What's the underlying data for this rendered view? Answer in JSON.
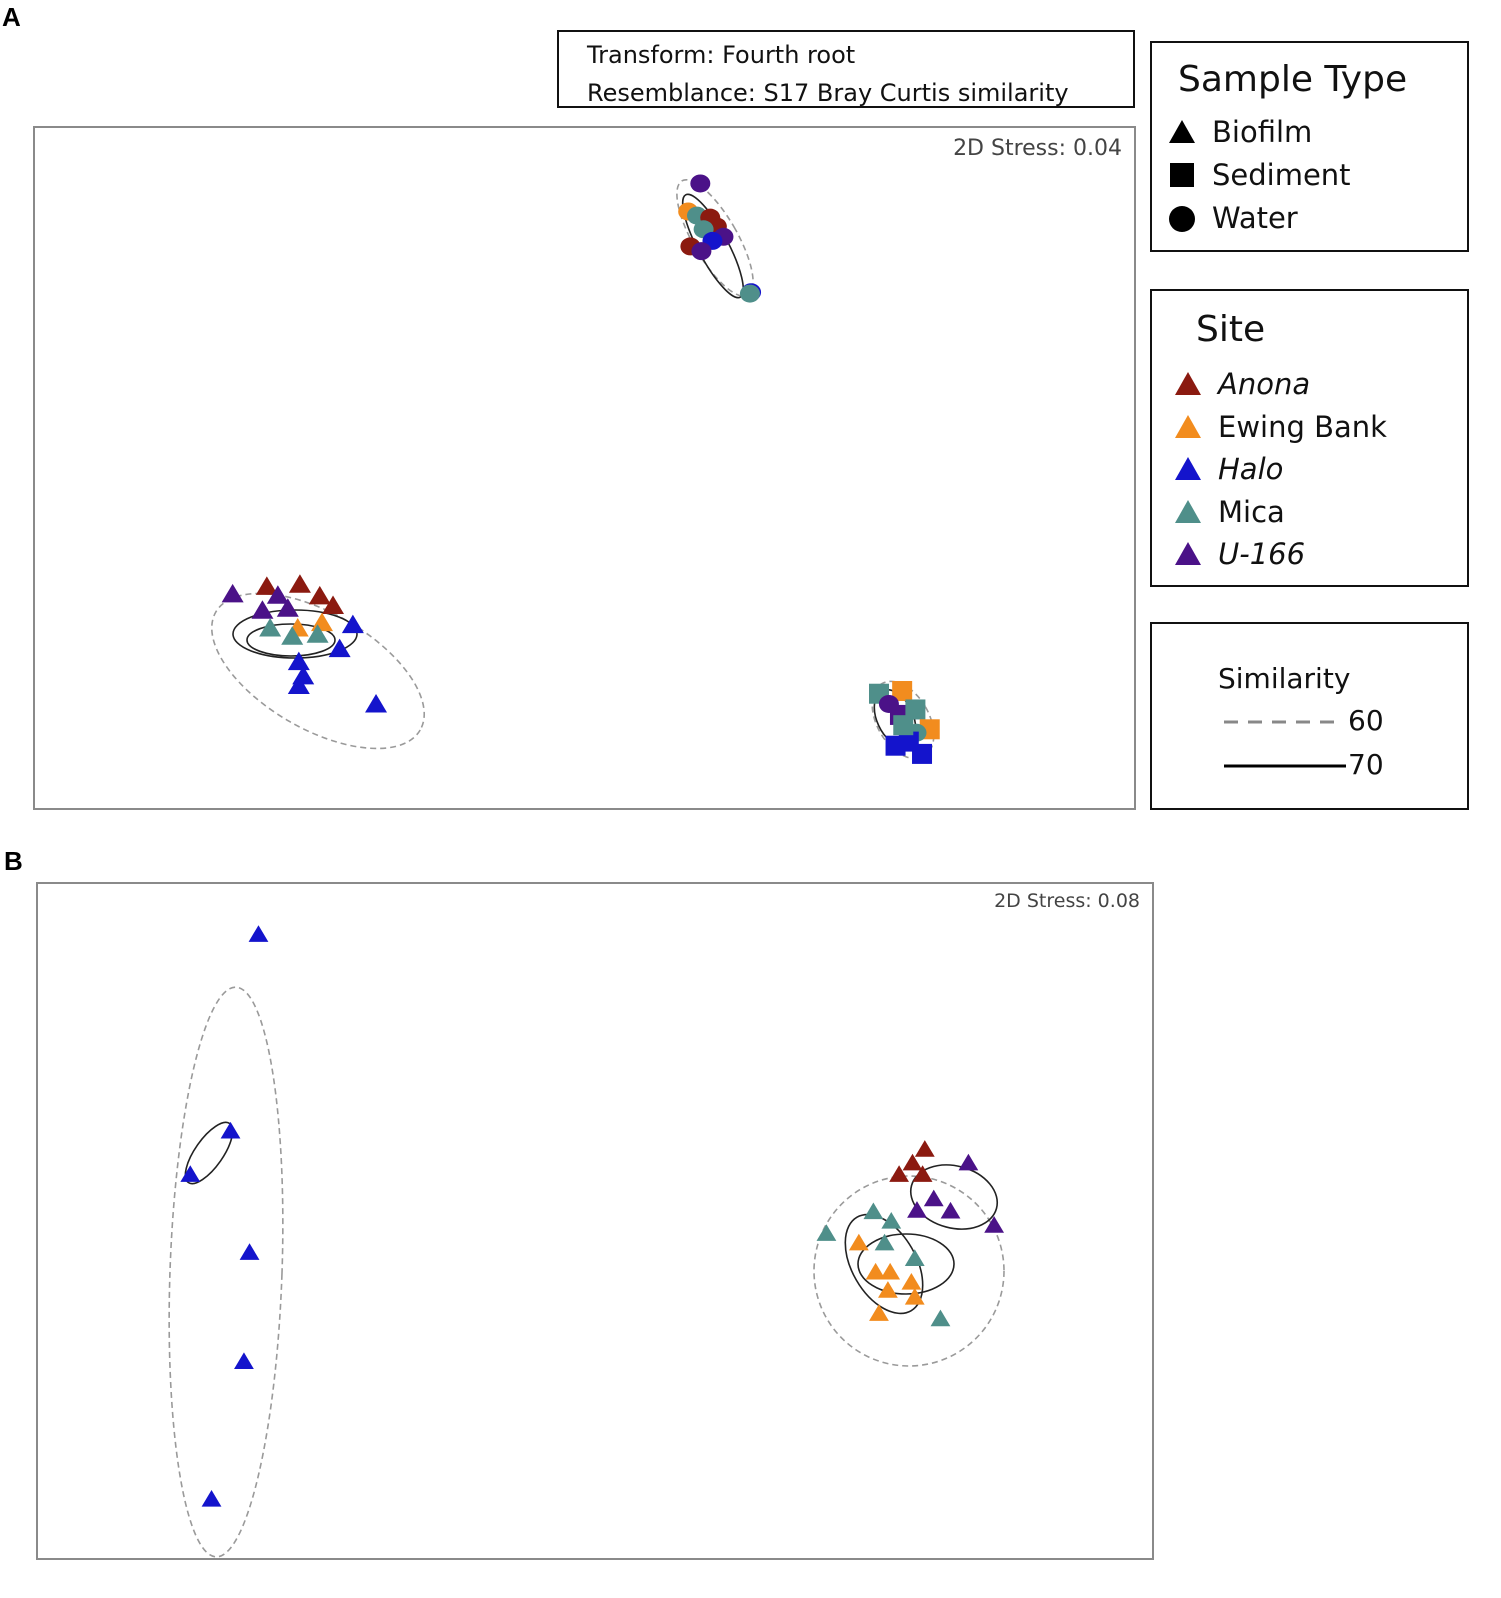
{
  "panels": {
    "a": {
      "letter": "A",
      "stress": "2D Stress: 0.04"
    },
    "b": {
      "letter": "B",
      "stress": "2D Stress: 0.08"
    }
  },
  "transform_box": {
    "line1": "Transform: Fourth root",
    "line2": "Resemblance: S17 Bray Curtis similarity"
  },
  "legend_sample_type": {
    "title": "Sample Type",
    "items": [
      {
        "label": "Biofilm",
        "shape": "triangle"
      },
      {
        "label": "Sediment",
        "shape": "square"
      },
      {
        "label": "Water",
        "shape": "circle"
      }
    ]
  },
  "legend_site": {
    "title": "Site",
    "items": [
      {
        "label": "Anona",
        "color": "#8b1a10",
        "italic": true
      },
      {
        "label": "Ewing Bank",
        "color": "#f28c1e",
        "italic": false
      },
      {
        "label": "Halo",
        "color": "#1414cc",
        "italic": true
      },
      {
        "label": "Mica",
        "color": "#4f8f8a",
        "italic": false
      },
      {
        "label": "U-166",
        "color": "#4b1288",
        "italic": true
      }
    ]
  },
  "legend_similarity": {
    "title": "Similarity",
    "items": [
      {
        "label": "60",
        "style": "dashed"
      },
      {
        "label": "70",
        "style": "solid"
      }
    ]
  },
  "chart_data": [
    {
      "type": "scatter",
      "panel": "A",
      "method": "nMDS",
      "xlim": [
        0,
        100
      ],
      "ylim": [
        0,
        100
      ],
      "colors": {
        "Anona": "#8b1a10",
        "Ewing Bank": "#f28c1e",
        "Halo": "#1414cc",
        "Mica": "#4f8f8a",
        "U-166": "#4b1288"
      },
      "points": [
        {
          "x": 60.5,
          "y": 91.6,
          "site": "U-166",
          "type": "Water"
        },
        {
          "x": 59.4,
          "y": 87.5,
          "site": "Ewing Bank",
          "type": "Water"
        },
        {
          "x": 60.2,
          "y": 86.9,
          "site": "Mica",
          "type": "Water"
        },
        {
          "x": 61.4,
          "y": 86.6,
          "site": "Anona",
          "type": "Water"
        },
        {
          "x": 62.0,
          "y": 85.3,
          "site": "Anona",
          "type": "Water"
        },
        {
          "x": 60.8,
          "y": 84.9,
          "site": "Mica",
          "type": "Water"
        },
        {
          "x": 62.6,
          "y": 83.8,
          "site": "U-166",
          "type": "Water"
        },
        {
          "x": 61.6,
          "y": 83.2,
          "site": "Halo",
          "type": "Water"
        },
        {
          "x": 59.6,
          "y": 82.4,
          "site": "Anona",
          "type": "Water"
        },
        {
          "x": 60.6,
          "y": 81.7,
          "site": "U-166",
          "type": "Water"
        },
        {
          "x": 65.1,
          "y": 75.7,
          "site": "Halo",
          "type": "Water"
        },
        {
          "x": 65.0,
          "y": 75.5,
          "site": "Mica",
          "type": "Water"
        },
        {
          "x": 18.1,
          "y": 31.6,
          "site": "U-166",
          "type": "Biofilm"
        },
        {
          "x": 21.2,
          "y": 32.7,
          "site": "Anona",
          "type": "Biofilm"
        },
        {
          "x": 24.2,
          "y": 33.0,
          "site": "Anona",
          "type": "Biofilm"
        },
        {
          "x": 26.0,
          "y": 31.3,
          "site": "Anona",
          "type": "Biofilm"
        },
        {
          "x": 27.2,
          "y": 29.9,
          "site": "Anona",
          "type": "Biofilm"
        },
        {
          "x": 22.2,
          "y": 31.4,
          "site": "U-166",
          "type": "Biofilm"
        },
        {
          "x": 20.8,
          "y": 29.2,
          "site": "U-166",
          "type": "Biofilm"
        },
        {
          "x": 23.1,
          "y": 29.5,
          "site": "U-166",
          "type": "Biofilm"
        },
        {
          "x": 26.2,
          "y": 27.4,
          "site": "Ewing Bank",
          "type": "Biofilm"
        },
        {
          "x": 24.0,
          "y": 26.6,
          "site": "Ewing Bank",
          "type": "Biofilm"
        },
        {
          "x": 21.5,
          "y": 26.6,
          "site": "Mica",
          "type": "Biofilm"
        },
        {
          "x": 23.5,
          "y": 25.4,
          "site": "Mica",
          "type": "Biofilm"
        },
        {
          "x": 25.8,
          "y": 25.7,
          "site": "Mica",
          "type": "Biofilm"
        },
        {
          "x": 29.0,
          "y": 27.1,
          "site": "Halo",
          "type": "Biofilm"
        },
        {
          "x": 27.8,
          "y": 23.6,
          "site": "Halo",
          "type": "Biofilm"
        },
        {
          "x": 24.1,
          "y": 21.7,
          "site": "Halo",
          "type": "Biofilm"
        },
        {
          "x": 24.5,
          "y": 19.6,
          "site": "Halo",
          "type": "Biofilm"
        },
        {
          "x": 24.1,
          "y": 18.2,
          "site": "Halo",
          "type": "Biofilm"
        },
        {
          "x": 31.1,
          "y": 15.5,
          "site": "Halo",
          "type": "Biofilm"
        },
        {
          "x": 76.7,
          "y": 17.0,
          "site": "Mica",
          "type": "Sediment"
        },
        {
          "x": 78.8,
          "y": 17.4,
          "site": "Ewing Bank",
          "type": "Sediment"
        },
        {
          "x": 77.6,
          "y": 15.5,
          "site": "U-166",
          "type": "Water"
        },
        {
          "x": 78.6,
          "y": 13.9,
          "site": "U-166",
          "type": "Sediment"
        },
        {
          "x": 80.0,
          "y": 14.7,
          "site": "Mica",
          "type": "Sediment"
        },
        {
          "x": 81.3,
          "y": 11.8,
          "site": "Ewing Bank",
          "type": "Sediment"
        },
        {
          "x": 80.1,
          "y": 11.3,
          "site": "Mica",
          "type": "Water"
        },
        {
          "x": 78.2,
          "y": 9.4,
          "site": "Halo",
          "type": "Sediment"
        },
        {
          "x": 80.6,
          "y": 8.2,
          "site": "Halo",
          "type": "Sediment"
        },
        {
          "x": 79.4,
          "y": 10.0,
          "site": "Halo",
          "type": "Sediment"
        },
        {
          "x": 78.9,
          "y": 12.4,
          "site": "Mica",
          "type": "Sediment"
        }
      ]
    },
    {
      "type": "scatter",
      "panel": "B",
      "method": "nMDS",
      "xlim": [
        0,
        100
      ],
      "ylim": [
        0,
        100
      ],
      "colors": {
        "Anona": "#8b1a10",
        "Ewing Bank": "#f28c1e",
        "Halo": "#1414cc",
        "Mica": "#4f8f8a",
        "U-166": "#4b1288"
      },
      "points": [
        {
          "x": 19.9,
          "y": 92.3,
          "site": "Halo",
          "type": "Biofilm"
        },
        {
          "x": 17.4,
          "y": 63.3,
          "site": "Halo",
          "type": "Biofilm"
        },
        {
          "x": 13.8,
          "y": 56.9,
          "site": "Halo",
          "type": "Biofilm"
        },
        {
          "x": 19.1,
          "y": 45.4,
          "site": "Halo",
          "type": "Biofilm"
        },
        {
          "x": 18.6,
          "y": 29.3,
          "site": "Halo",
          "type": "Biofilm"
        },
        {
          "x": 15.7,
          "y": 9.0,
          "site": "Halo",
          "type": "Biofilm"
        },
        {
          "x": 79.5,
          "y": 60.6,
          "site": "Anona",
          "type": "Biofilm"
        },
        {
          "x": 78.4,
          "y": 58.6,
          "site": "Anona",
          "type": "Biofilm"
        },
        {
          "x": 77.2,
          "y": 56.9,
          "site": "Anona",
          "type": "Biofilm"
        },
        {
          "x": 79.3,
          "y": 56.9,
          "site": "Anona",
          "type": "Biofilm"
        },
        {
          "x": 83.4,
          "y": 58.6,
          "site": "U-166",
          "type": "Biofilm"
        },
        {
          "x": 80.3,
          "y": 53.3,
          "site": "U-166",
          "type": "Biofilm"
        },
        {
          "x": 78.8,
          "y": 51.6,
          "site": "U-166",
          "type": "Biofilm"
        },
        {
          "x": 81.8,
          "y": 51.5,
          "site": "U-166",
          "type": "Biofilm"
        },
        {
          "x": 85.7,
          "y": 49.4,
          "site": "U-166",
          "type": "Biofilm"
        },
        {
          "x": 74.9,
          "y": 51.4,
          "site": "Mica",
          "type": "Biofilm"
        },
        {
          "x": 76.5,
          "y": 50.0,
          "site": "Mica",
          "type": "Biofilm"
        },
        {
          "x": 70.7,
          "y": 48.2,
          "site": "Mica",
          "type": "Biofilm"
        },
        {
          "x": 75.9,
          "y": 46.8,
          "site": "Mica",
          "type": "Biofilm"
        },
        {
          "x": 78.6,
          "y": 44.5,
          "site": "Mica",
          "type": "Biofilm"
        },
        {
          "x": 80.9,
          "y": 35.6,
          "site": "Mica",
          "type": "Biofilm"
        },
        {
          "x": 73.6,
          "y": 46.8,
          "site": "Ewing Bank",
          "type": "Biofilm"
        },
        {
          "x": 75.1,
          "y": 42.5,
          "site": "Ewing Bank",
          "type": "Biofilm"
        },
        {
          "x": 76.4,
          "y": 42.5,
          "site": "Ewing Bank",
          "type": "Biofilm"
        },
        {
          "x": 78.3,
          "y": 41.0,
          "site": "Ewing Bank",
          "type": "Biofilm"
        },
        {
          "x": 76.2,
          "y": 39.8,
          "site": "Ewing Bank",
          "type": "Biofilm"
        },
        {
          "x": 78.6,
          "y": 38.8,
          "site": "Ewing Bank",
          "type": "Biofilm"
        },
        {
          "x": 75.4,
          "y": 36.4,
          "site": "Ewing Bank",
          "type": "Biofilm"
        }
      ]
    }
  ]
}
